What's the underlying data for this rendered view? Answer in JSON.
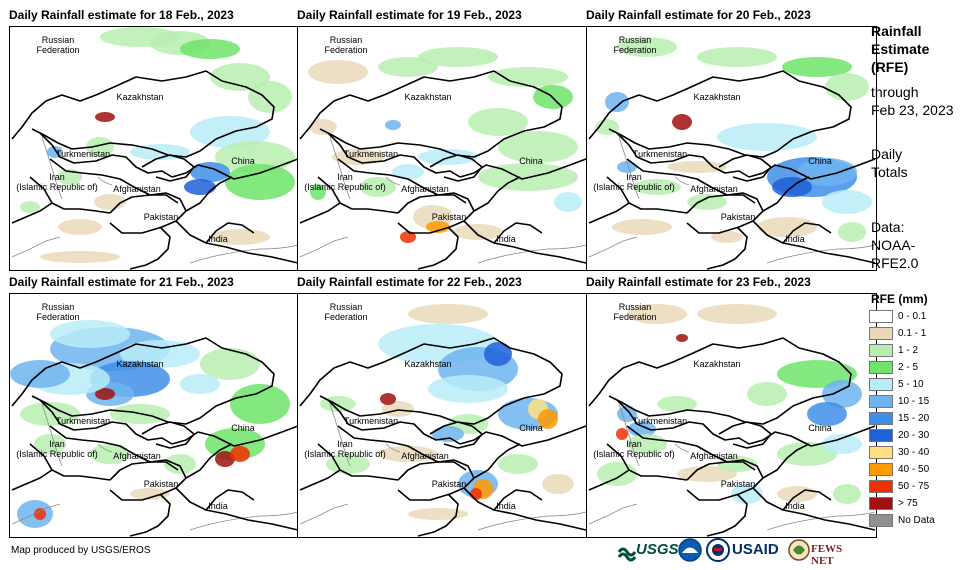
{
  "panels": [
    {
      "title": "Daily Rainfall estimate for 18 Feb., 2023"
    },
    {
      "title": "Daily Rainfall estimate for 19 Feb., 2023"
    },
    {
      "title": "Daily Rainfall estimate for 20 Feb., 2023"
    },
    {
      "title": "Daily Rainfall estimate for 21 Feb., 2023"
    },
    {
      "title": "Daily Rainfall estimate for 22 Feb., 2023"
    },
    {
      "title": "Daily Rainfall estimate for 23 Feb., 2023"
    }
  ],
  "map_labels": {
    "russia_1": "Russian",
    "russia_2": "Federation",
    "kazakhstan": "Kazakhstan",
    "turkmenistan": "Turkmenistan",
    "china": "China",
    "iran_1": "Iran",
    "iran_2": "(Islamic Republic of)",
    "afghanistan": "Afghanistan",
    "pakistan": "Pakistan",
    "india": "India"
  },
  "sidebar": {
    "title_1": "Rainfall",
    "title_2": "Estimate",
    "title_3": "(RFE)",
    "through": "through",
    "date": "Feb 23, 2023",
    "daily_1": "Daily",
    "daily_2": "Totals",
    "data_1": "Data:",
    "data_2": "NOAA-",
    "data_3": "RFE2.0"
  },
  "legend": {
    "title": "RFE (mm)",
    "items": [
      {
        "label": "0 - 0.1",
        "color": "#ffffff"
      },
      {
        "label": "0.1 - 1",
        "color": "#ead9b8"
      },
      {
        "label": "1 - 2",
        "color": "#b8eeb0"
      },
      {
        "label": "2 - 5",
        "color": "#6ee46a"
      },
      {
        "label": "5 - 10",
        "color": "#b8ecf8"
      },
      {
        "label": "10 - 15",
        "color": "#6fb4f0"
      },
      {
        "label": "15 - 20",
        "color": "#3f8ee8"
      },
      {
        "label": "20 - 30",
        "color": "#2060d8"
      },
      {
        "label": "30 - 40",
        "color": "#ffe080"
      },
      {
        "label": "40 - 50",
        "color": "#ff9a00"
      },
      {
        "label": "50 - 75",
        "color": "#ee3000"
      },
      {
        "label": "> 75",
        "color": "#a01010"
      },
      {
        "label": "No Data",
        "color": "#909090"
      }
    ]
  },
  "credit": "Map produced by USGS/EROS",
  "logos": {
    "usgs": "USGS",
    "usaid": "USAID",
    "fews": "FEWS NET"
  }
}
